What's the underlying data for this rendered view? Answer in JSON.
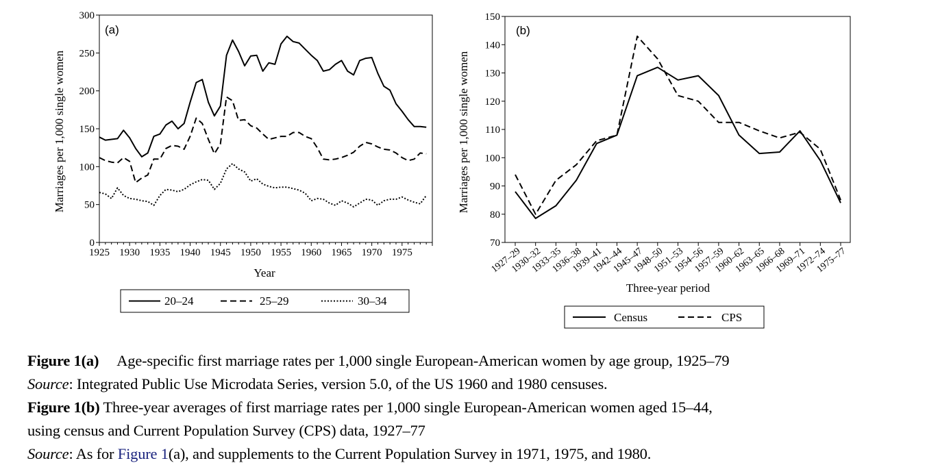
{
  "chart_data": [
    {
      "type": "line",
      "panel_label": "(a)",
      "xlabel": "Year",
      "ylabel": "Marriages per 1,000 single women",
      "xlim": [
        1925,
        1980
      ],
      "ylim": [
        0,
        300
      ],
      "x_ticks": [
        1925,
        1930,
        1935,
        1940,
        1945,
        1950,
        1955,
        1960,
        1965,
        1970,
        1975
      ],
      "y_ticks": [
        0,
        50,
        100,
        150,
        200,
        250,
        300
      ],
      "legend_position": "bottom",
      "x": [
        1925,
        1926,
        1927,
        1928,
        1929,
        1930,
        1931,
        1932,
        1933,
        1934,
        1935,
        1936,
        1937,
        1938,
        1939,
        1940,
        1941,
        1942,
        1943,
        1944,
        1945,
        1946,
        1947,
        1948,
        1949,
        1950,
        1951,
        1952,
        1953,
        1954,
        1955,
        1956,
        1957,
        1958,
        1959,
        1960,
        1961,
        1962,
        1963,
        1964,
        1965,
        1966,
        1967,
        1968,
        1969,
        1970,
        1971,
        1972,
        1973,
        1974,
        1975,
        1976,
        1977,
        1978,
        1979
      ],
      "series": [
        {
          "name": "20–24",
          "style": "solid",
          "values": [
            139,
            135,
            136,
            137,
            148,
            138,
            124,
            113,
            118,
            140,
            143,
            155,
            160,
            150,
            157,
            185,
            211,
            215,
            185,
            167,
            180,
            247,
            267,
            252,
            233,
            246,
            247,
            226,
            237,
            235,
            262,
            272,
            265,
            263,
            255,
            247,
            240,
            226,
            228,
            235,
            240,
            226,
            221,
            240,
            243,
            244,
            223,
            206,
            201,
            183,
            173,
            162,
            153,
            153,
            152
          ]
        },
        {
          "name": "25–29",
          "style": "dashed",
          "values": [
            112,
            108,
            106,
            105,
            112,
            107,
            79,
            85,
            89,
            110,
            110,
            124,
            128,
            127,
            123,
            140,
            164,
            157,
            136,
            117,
            130,
            192,
            187,
            161,
            162,
            154,
            151,
            143,
            136,
            138,
            140,
            140,
            145,
            145,
            140,
            137,
            125,
            110,
            109,
            110,
            112,
            115,
            119,
            127,
            132,
            130,
            126,
            123,
            122,
            118,
            112,
            108,
            110,
            118,
            117
          ]
        },
        {
          "name": "30–34",
          "style": "dotted",
          "values": [
            66,
            64,
            58,
            72,
            62,
            58,
            57,
            55,
            54,
            49,
            62,
            70,
            69,
            67,
            70,
            76,
            80,
            83,
            82,
            70,
            78,
            97,
            104,
            97,
            93,
            81,
            84,
            77,
            74,
            72,
            73,
            73,
            71,
            69,
            65,
            55,
            58,
            57,
            52,
            49,
            55,
            52,
            47,
            52,
            57,
            56,
            49,
            55,
            57,
            57,
            60,
            56,
            53,
            51,
            62
          ]
        }
      ]
    },
    {
      "type": "line",
      "panel_label": "(b)",
      "xlabel": "Three-year period",
      "ylabel": "Marriages per 1,000 single women",
      "ylim": [
        70,
        150
      ],
      "y_ticks": [
        70,
        80,
        90,
        100,
        110,
        120,
        130,
        140,
        150
      ],
      "legend_position": "bottom",
      "categories": [
        "1927–29",
        "1930–32",
        "1933–35",
        "1936–38",
        "1939–41",
        "1942–44",
        "1945–47",
        "1948–50",
        "1951–53",
        "1954–56",
        "1957–59",
        "1960–62",
        "1963–65",
        "1966–68",
        "1969–71",
        "1972–74",
        "1975–77"
      ],
      "series": [
        {
          "name": "Census",
          "style": "solid",
          "values": [
            88,
            78.5,
            83,
            92,
            105,
            108,
            129,
            132,
            127.5,
            129,
            122,
            108,
            101.5,
            102,
            109.5,
            99,
            84
          ]
        },
        {
          "name": "CPS",
          "style": "dashed",
          "values": [
            94,
            80,
            92,
            97.5,
            106,
            108,
            143,
            135,
            122,
            120,
            112.5,
            112.5,
            109.5,
            107,
            109,
            103,
            85
          ]
        }
      ]
    }
  ],
  "caption": {
    "fig_a_label": "Figure 1(a)",
    "fig_a_text": "Age-specific first marriage rates per 1,000 single European-American women by age group, 1925–79",
    "source_label": "Source",
    "fig_a_source": ": Integrated Public Use Microdata Series, version 5.0, of the US 1960 and 1980 censuses.",
    "fig_b_label": "Figure 1(b)",
    "fig_b_text_1": " Three-year averages of first marriage rates per 1,000 single European-American women aged 15–44,",
    "fig_b_text_2": "using census and Current Population Survey (CPS) data, 1927–77",
    "fig_b_source_pre": ": As for ",
    "fig_b_source_link": "Figure 1",
    "fig_b_source_post": "(a), and supplements to the Current Population Survey in 1971, 1975, and 1980."
  }
}
